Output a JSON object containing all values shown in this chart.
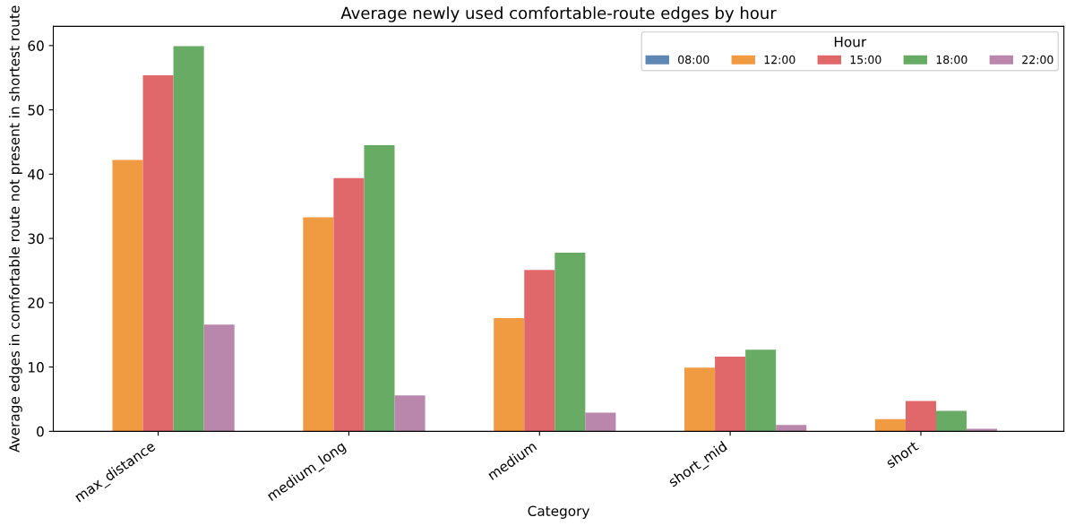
{
  "chart_data": {
    "type": "bar",
    "title": "Average newly used comfortable-route edges by hour",
    "xlabel": "Category",
    "ylabel": "Average edges in comfortable route not present in shortest route",
    "legend_title": "Hour",
    "categories": [
      "max_distance",
      "medium_long",
      "medium",
      "short_mid",
      "short"
    ],
    "series": [
      {
        "name": "08:00",
        "color": "#5f87b3",
        "values": [
          0,
          0,
          0,
          0,
          0
        ]
      },
      {
        "name": "12:00",
        "color": "#f09a42",
        "values": [
          42.2,
          33.3,
          17.6,
          9.9,
          1.9
        ]
      },
      {
        "name": "15:00",
        "color": "#e0686a",
        "values": [
          55.4,
          39.4,
          25.1,
          11.6,
          4.7
        ]
      },
      {
        "name": "18:00",
        "color": "#68ab64",
        "values": [
          59.9,
          44.5,
          27.8,
          12.7,
          3.2
        ]
      },
      {
        "name": "22:00",
        "color": "#b987ab",
        "values": [
          16.6,
          5.6,
          2.9,
          1.0,
          0.4
        ]
      }
    ],
    "ylim": [
      0,
      63
    ],
    "yticks": [
      0,
      10,
      20,
      30,
      40,
      50,
      60
    ],
    "grid": false,
    "legend": "top right"
  }
}
